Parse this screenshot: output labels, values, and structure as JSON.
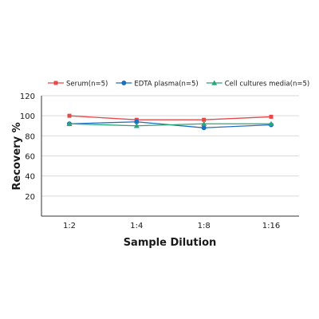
{
  "chart_data": {
    "type": "line",
    "title": "",
    "xlabel": "Sample Dilution",
    "ylabel": "Recovery %",
    "categories": [
      "1:2",
      "1:4",
      "1:8",
      "1:16"
    ],
    "ylim": [
      0,
      120
    ],
    "yticks": [
      20,
      40,
      60,
      80,
      100,
      120
    ],
    "grid": true,
    "legend_position": "top",
    "series": [
      {
        "name": "Serum(n=5)",
        "values": [
          100,
          96,
          96,
          99
        ],
        "color": "#e8484a",
        "marker": "square"
      },
      {
        "name": "EDTA plasma(n=5)",
        "values": [
          92,
          94,
          88,
          91
        ],
        "color": "#1f6fc1",
        "marker": "circle"
      },
      {
        "name": "Cell cultures media(n=5)",
        "values": [
          92,
          90,
          92,
          92
        ],
        "color": "#2aa57a",
        "marker": "triangle"
      }
    ]
  }
}
